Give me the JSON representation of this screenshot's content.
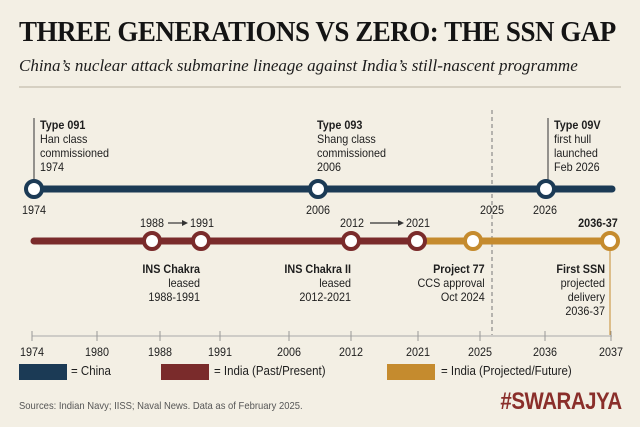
{
  "title": "THREE GENERATIONS VS ZERO: THE SSN GAP",
  "subtitle": "China’s nuclear attack submarine lineage against India’s still-nascent programme",
  "colors": {
    "china": "#1b3a55",
    "india_past": "#7a2b2b",
    "india_future": "#c58b2e",
    "background": "#f3efe4",
    "brand": "#8a2e2a"
  },
  "china": {
    "events": [
      {
        "name": "Type 091",
        "lines": [
          "Han class",
          "commissioned",
          "1974"
        ],
        "year_label": "1974"
      },
      {
        "name": "Type 093",
        "lines": [
          "Shang class",
          "commissioned",
          "2006"
        ],
        "year_label": "2006"
      },
      {
        "name": "Type 09V",
        "lines": [
          "first hull",
          "launched",
          "Feb 2026"
        ],
        "year_label": "2026"
      }
    ],
    "marker_label": "2025"
  },
  "india": {
    "ranges": [
      {
        "label_from": "1988",
        "label_to": "1991"
      },
      {
        "label_from": "2012",
        "label_to": "2021"
      }
    ],
    "future_label": "2036-37",
    "events": [
      {
        "name": "INS Chakra",
        "lines": [
          "leased",
          "1988-1991"
        ]
      },
      {
        "name": "INS Chakra II",
        "lines": [
          "leased",
          "2012-2021"
        ]
      },
      {
        "name": "Project 77",
        "lines": [
          "CCS approval",
          "Oct 2024"
        ]
      },
      {
        "name": "First SSN",
        "lines": [
          "projected",
          "delivery",
          "2036-37"
        ]
      }
    ]
  },
  "axis_ticks": [
    "1974",
    "1980",
    "1988",
    "1991",
    "2006",
    "2012",
    "2021",
    "2025",
    "2036",
    "2037"
  ],
  "legend": [
    {
      "label": "= China",
      "color": "#1b3a55"
    },
    {
      "label": "= India (Past/Present)",
      "color": "#7a2b2b"
    },
    {
      "label": "= India (Projected/Future)",
      "color": "#c58b2e"
    }
  ],
  "sources": "Sources: Indian Navy; IISS; Naval News. Data as of February 2025.",
  "brand": "#SWARAJYA"
}
